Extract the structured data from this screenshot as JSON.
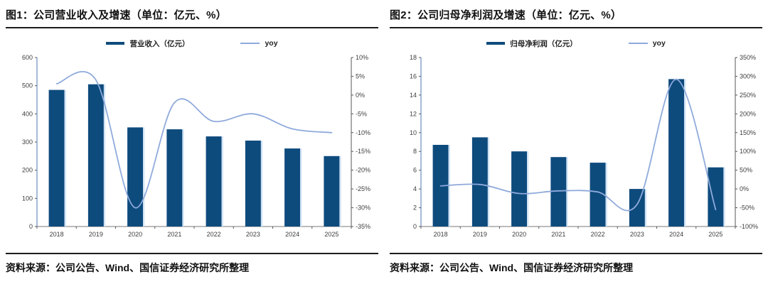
{
  "colors": {
    "bar": "#0e4b7d",
    "bar_edge": "#cfe3f5",
    "line": "#8faadc",
    "axis_left": "#4f74ad",
    "axis_dark": "#7a7a7a",
    "tick_text": "#3d3d3d"
  },
  "panels": [
    {
      "title": "图1：公司营业收入及增速（单位：亿元、%）",
      "legend": {
        "bar": "营业收入（亿元）",
        "line": "yoy"
      },
      "source": "资料来源：公司公告、Wind、国信证券经济研究所整理"
    },
    {
      "title": "图2：公司归母净利润及增速（单位：亿元、%）",
      "legend": {
        "bar": "归母净利润（亿元）",
        "line": "yoy"
      },
      "source": "资料来源：公司公告、Wind、国信证券经济研究所整理"
    }
  ],
  "chart_data": [
    {
      "type": "bar",
      "title": "图1：公司营业收入及增速（单位：亿元、%）",
      "categories": [
        "2018",
        "2019",
        "2020",
        "2021",
        "2022",
        "2023",
        "2024",
        "2025"
      ],
      "series": [
        {
          "name": "营业收入（亿元）",
          "type": "bar",
          "axis": "left",
          "values": [
            485,
            505,
            352,
            345,
            320,
            305,
            277,
            250
          ]
        },
        {
          "name": "yoy",
          "type": "line",
          "axis": "right",
          "values": [
            3,
            4,
            -30,
            -2,
            -7,
            -5,
            -9,
            -10
          ]
        }
      ],
      "left_axis": {
        "min": 0,
        "max": 600,
        "step": 100,
        "suffix": ""
      },
      "right_axis": {
        "min": -35,
        "max": 10,
        "step": 5,
        "suffix": "%"
      },
      "grid": false,
      "legend_position": "top"
    },
    {
      "type": "bar",
      "title": "图2：公司归母净利润及增速（单位：亿元、%）",
      "categories": [
        "2018",
        "2019",
        "2020",
        "2021",
        "2022",
        "2023",
        "2024",
        "2025"
      ],
      "series": [
        {
          "name": "归母净利润（亿元）",
          "type": "bar",
          "axis": "left",
          "values": [
            8.7,
            9.5,
            8.0,
            7.4,
            6.8,
            4.0,
            15.7,
            6.3
          ]
        },
        {
          "name": "yoy",
          "type": "line",
          "axis": "right",
          "values": [
            8,
            12,
            -12,
            -5,
            -8,
            -41,
            292,
            -55
          ]
        }
      ],
      "left_axis": {
        "min": 0,
        "max": 18,
        "step": 2,
        "suffix": ""
      },
      "right_axis": {
        "min": -100,
        "max": 350,
        "step": 50,
        "suffix": "%"
      },
      "grid": false,
      "legend_position": "top"
    }
  ]
}
